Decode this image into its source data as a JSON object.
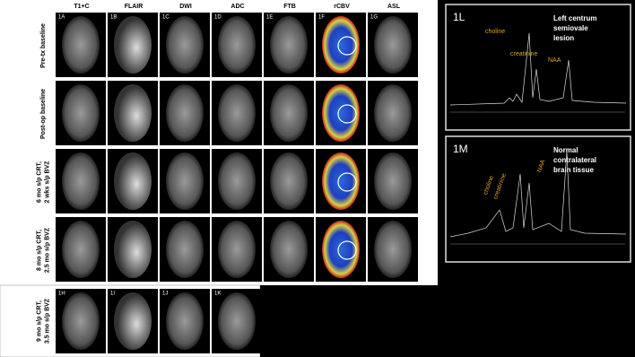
{
  "figure": {
    "headers": [
      "T1+C",
      "FLAIR",
      "DWI",
      "ADC",
      "FTB",
      "rCBV",
      "ASL"
    ],
    "panel_labels": [
      "1A",
      "1B",
      "1C",
      "1D",
      "1E",
      "1F",
      "1G"
    ],
    "row_labels": [
      [
        "Pre-tx baseline"
      ],
      [
        "Post-op baseline"
      ],
      [
        "6 mo s/p CRT,",
        "2 wks s/p BVZ"
      ],
      [
        "8 mo s/p CRT,",
        "2.5 mo s/p BVZ"
      ]
    ],
    "bottom": {
      "row_label": [
        "9 mo s/p CRT,",
        "3.5 mo s/p BVZ"
      ],
      "panel_labels": [
        "1H",
        "1I",
        "1J",
        "1K"
      ]
    },
    "spectra": [
      {
        "label": "1L",
        "title": [
          "Left centrum",
          "semiovale",
          "lesion"
        ],
        "peaks": [
          "choline",
          "creatinine",
          "NAA"
        ]
      },
      {
        "label": "1M",
        "title": [
          "Normal",
          "contralateral",
          "brain tissue"
        ],
        "peaks": [
          "choline",
          "creatinine",
          "NAA"
        ]
      }
    ]
  }
}
